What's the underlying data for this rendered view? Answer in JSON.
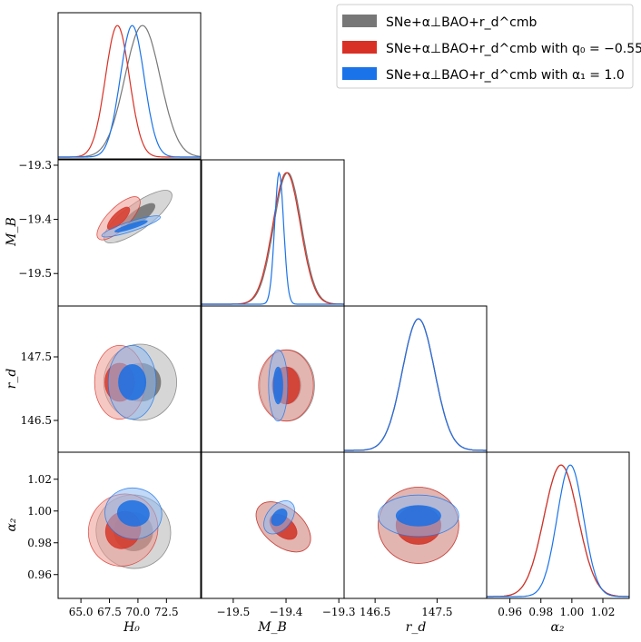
{
  "chart_data": {
    "type": "corner",
    "title": "",
    "legend_position": "top-right",
    "series": [
      {
        "name": "SNe+α⊥BAO+r_d^cmb",
        "color": "#777777"
      },
      {
        "name": "SNe+α⊥BAO+r_d^cmb with q0 = −0.55",
        "color": "#d93025"
      },
      {
        "name": "SNe+α⊥BAO+r_d^cmb with α1 = 1.0",
        "color": "#1a73e8"
      }
    ],
    "legend": [
      "SNe+α⊥BAO+r_d^cmb",
      "SNe+α⊥BAO+r_d^cmb with q₀ = −0.55",
      "SNe+α⊥BAO+r_d^cmb with α₁ = 1.0"
    ],
    "parameters": [
      {
        "name": "H0",
        "label": "H₀",
        "range": [
          63.0,
          75.5
        ],
        "ticks": [
          "65.0",
          "67.5",
          "70.0",
          "72.5"
        ],
        "tick_values": [
          65.0,
          67.5,
          70.0,
          72.5
        ]
      },
      {
        "name": "M_B",
        "label": "M_B",
        "range": [
          -19.56,
          -19.29
        ],
        "ticks": [
          "−19.5",
          "−19.4",
          "−19.3"
        ],
        "tick_values": [
          -19.5,
          -19.4,
          -19.3
        ]
      },
      {
        "name": "r_d",
        "label": "r_d",
        "range": [
          146.0,
          148.3
        ],
        "ticks": [
          "146.5",
          "147.5"
        ],
        "tick_values": [
          146.5,
          147.5
        ]
      },
      {
        "name": "alpha2",
        "label": "α₂",
        "range": [
          0.945,
          1.037
        ],
        "ticks": [
          "0.96",
          "0.98",
          "1.00",
          "1.02"
        ],
        "tick_values": [
          0.96,
          0.98,
          1.0,
          1.02
        ]
      }
    ],
    "row_ylabels": [
      "",
      "M_B",
      "r_d",
      "α₂"
    ],
    "row_yticks": [
      [],
      [
        "−19.3",
        "−19.4",
        "−19.5"
      ],
      [
        "147.5",
        "146.5"
      ],
      [
        "1.02",
        "1.00",
        "0.98",
        "0.96"
      ]
    ],
    "row_ytick_values": [
      [],
      [
        -19.3,
        -19.4,
        -19.5
      ],
      [
        147.5,
        146.5
      ],
      [
        1.02,
        1.0,
        0.98,
        0.96
      ]
    ],
    "marginals": [
      [
        {
          "mean": 70.4,
          "sigma": 1.55
        },
        {
          "mean": 68.2,
          "sigma": 1.05
        },
        {
          "mean": 69.5,
          "sigma": 1.05
        }
      ],
      [
        {
          "mean": -19.397,
          "sigma": 0.026
        },
        {
          "mean": -19.399,
          "sigma": 0.026
        },
        {
          "mean": -19.413,
          "sigma": 0.0085
        }
      ],
      [
        {
          "mean": 147.2,
          "sigma": 0.26
        },
        {
          "mean": 147.2,
          "sigma": 0.26
        },
        {
          "mean": 147.2,
          "sigma": 0.26
        }
      ],
      [
        {
          "mean": 0.993,
          "sigma": 0.011
        },
        {
          "mean": 0.993,
          "sigma": 0.011
        },
        {
          "mean": 0.999,
          "sigma": 0.0085
        }
      ]
    ],
    "contours": [
      {
        "row": 1,
        "col": 0,
        "series": 0,
        "center": [
          70.0,
          -19.395
        ],
        "outer": [
          3.6,
          0.024,
          36
        ],
        "inner": [
          1.8,
          0.012,
          36
        ]
      },
      {
        "row": 1,
        "col": 0,
        "series": 1,
        "center": [
          68.3,
          -19.398
        ],
        "outer": [
          2.5,
          0.02,
          45
        ],
        "inner": [
          1.3,
          0.01,
          45
        ]
      },
      {
        "row": 1,
        "col": 0,
        "series": 2,
        "center": [
          69.4,
          -19.413
        ],
        "outer": [
          2.7,
          0.009,
          18
        ],
        "inner": [
          1.5,
          0.0045,
          18
        ]
      },
      {
        "row": 2,
        "col": 0,
        "series": 0,
        "center": [
          70.2,
          147.1
        ],
        "outer": [
          3.2,
          0.6,
          0
        ],
        "inner": [
          1.8,
          0.3,
          0
        ]
      },
      {
        "row": 2,
        "col": 0,
        "series": 1,
        "center": [
          68.4,
          147.1
        ],
        "outer": [
          2.2,
          0.58,
          0
        ],
        "inner": [
          1.3,
          0.3,
          0
        ]
      },
      {
        "row": 2,
        "col": 0,
        "series": 2,
        "center": [
          69.5,
          147.1
        ],
        "outer": [
          2.1,
          0.58,
          0
        ],
        "inner": [
          1.2,
          0.28,
          0
        ]
      },
      {
        "row": 2,
        "col": 1,
        "series": 0,
        "center": [
          -19.398,
          147.05
        ],
        "outer": [
          0.052,
          0.56,
          0
        ],
        "inner": [
          0.026,
          0.29,
          0
        ]
      },
      {
        "row": 2,
        "col": 1,
        "series": 1,
        "center": [
          -19.4,
          147.05
        ],
        "outer": [
          0.052,
          0.56,
          0
        ],
        "inner": [
          0.026,
          0.29,
          0
        ]
      },
      {
        "row": 2,
        "col": 1,
        "series": 2,
        "center": [
          -19.415,
          147.05
        ],
        "outer": [
          0.018,
          0.56,
          0
        ],
        "inner": [
          0.009,
          0.29,
          0
        ]
      },
      {
        "row": 3,
        "col": 0,
        "series": 0,
        "center": [
          69.6,
          0.987
        ],
        "outer": [
          3.3,
          0.023,
          -30
        ],
        "inner": [
          1.7,
          0.012,
          -30
        ]
      },
      {
        "row": 3,
        "col": 0,
        "series": 1,
        "center": [
          68.7,
          0.988
        ],
        "outer": [
          3.0,
          0.023,
          -28
        ],
        "inner": [
          1.5,
          0.012,
          -28
        ]
      },
      {
        "row": 3,
        "col": 0,
        "series": 2,
        "center": [
          69.6,
          0.9985
        ],
        "outer": [
          2.5,
          0.016,
          -8
        ],
        "inner": [
          1.4,
          0.008,
          -8
        ]
      },
      {
        "row": 3,
        "col": 1,
        "series": 0,
        "center": [
          -19.405,
          0.99
        ],
        "outer": [
          0.06,
          0.012,
          -40
        ],
        "inner": [
          0.03,
          0.006,
          -40
        ]
      },
      {
        "row": 3,
        "col": 1,
        "series": 1,
        "center": [
          -19.405,
          0.99
        ],
        "outer": [
          0.06,
          0.012,
          -40
        ],
        "inner": [
          0.03,
          0.006,
          -40
        ]
      },
      {
        "row": 3,
        "col": 1,
        "series": 2,
        "center": [
          -19.413,
          0.996
        ],
        "outer": [
          0.023,
          0.012,
          -40
        ],
        "inner": [
          0.012,
          0.006,
          -40
        ]
      },
      {
        "row": 3,
        "col": 2,
        "series": 0,
        "center": [
          147.2,
          0.991
        ],
        "outer": [
          0.65,
          0.024,
          0
        ],
        "inner": [
          0.36,
          0.012,
          0
        ]
      },
      {
        "row": 3,
        "col": 2,
        "series": 1,
        "center": [
          147.2,
          0.991
        ],
        "outer": [
          0.65,
          0.024,
          0
        ],
        "inner": [
          0.36,
          0.012,
          0
        ]
      },
      {
        "row": 3,
        "col": 2,
        "series": 2,
        "center": [
          147.2,
          0.997
        ],
        "outer": [
          0.65,
          0.013,
          0
        ],
        "inner": [
          0.36,
          0.0065,
          0
        ]
      }
    ]
  }
}
